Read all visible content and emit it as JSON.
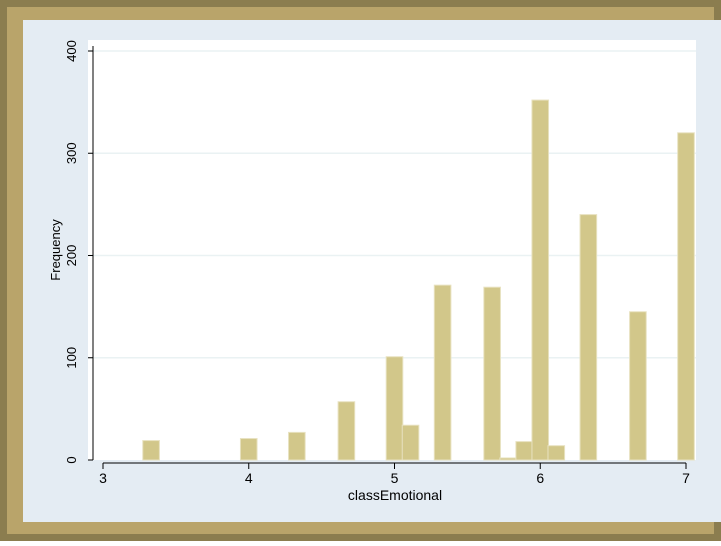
{
  "chart_data": {
    "type": "bar",
    "title": "",
    "xlabel": "classEmotional",
    "ylabel": "Frequency",
    "xlim": [
      3,
      7
    ],
    "ylim": [
      0,
      400
    ],
    "xticks": [
      3,
      4,
      5,
      6,
      7
    ],
    "yticks": [
      0,
      100,
      200,
      300,
      400
    ],
    "bar_width": 0.114,
    "grid": true,
    "legend": "none",
    "bars": [
      {
        "x": 3.33,
        "value": 19
      },
      {
        "x": 3.67,
        "value": 0
      },
      {
        "x": 4.0,
        "value": 21
      },
      {
        "x": 4.33,
        "value": 27
      },
      {
        "x": 4.67,
        "value": 57
      },
      {
        "x": 5.0,
        "value": 101
      },
      {
        "x": 5.11,
        "value": 34
      },
      {
        "x": 5.33,
        "value": 171
      },
      {
        "x": 5.67,
        "value": 169
      },
      {
        "x": 5.78,
        "value": 2
      },
      {
        "x": 5.89,
        "value": 18
      },
      {
        "x": 6.0,
        "value": 352
      },
      {
        "x": 6.11,
        "value": 14
      },
      {
        "x": 6.33,
        "value": 240
      },
      {
        "x": 6.67,
        "value": 145
      },
      {
        "x": 7.0,
        "value": 320
      }
    ]
  },
  "colors": {
    "frame_outer": "#8b7d4f",
    "frame_inner": "#b9a46a",
    "plot_region": "#e4ecf3",
    "plot_area": "#ffffff",
    "bar_fill": "#d2c78a",
    "bar_stroke": "#e8e2c0",
    "axis": "#000000",
    "grid": "#eaf2f3"
  }
}
